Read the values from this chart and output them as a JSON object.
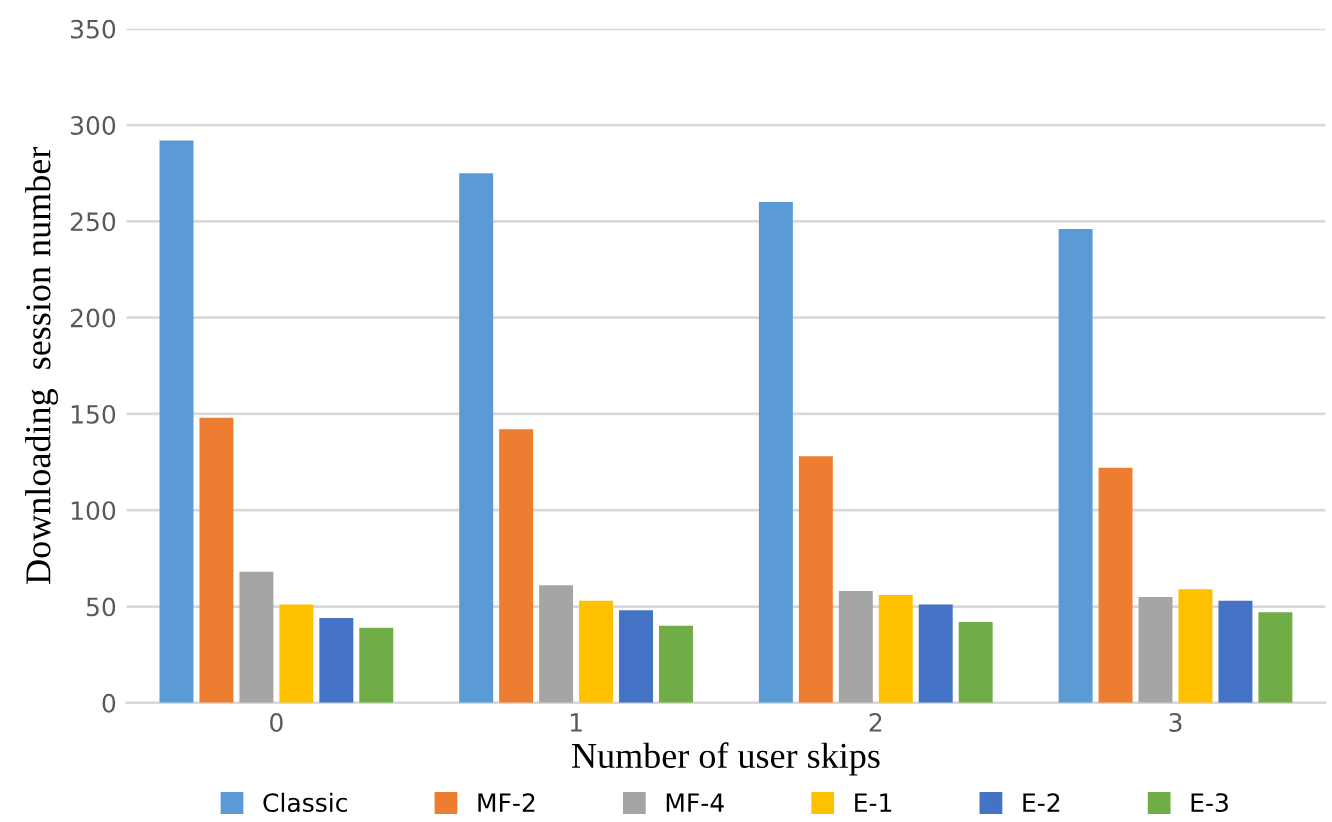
{
  "chart_data": {
    "type": "bar",
    "xlabel": "Number of user skips",
    "ylabel": "Downloading  session number",
    "categories": [
      "0",
      "1",
      "2",
      "3"
    ],
    "series": [
      {
        "name": "Classic",
        "color": "#5b9bd5",
        "values": [
          292,
          275,
          260,
          246
        ]
      },
      {
        "name": "MF-2",
        "color": "#ed7d31",
        "values": [
          148,
          142,
          128,
          122
        ]
      },
      {
        "name": "MF-4",
        "color": "#a5a5a5",
        "values": [
          68,
          61,
          58,
          55
        ]
      },
      {
        "name": "E-1",
        "color": "#ffc000",
        "values": [
          51,
          53,
          56,
          59
        ]
      },
      {
        "name": "E-2",
        "color": "#4472c4",
        "values": [
          44,
          48,
          51,
          53
        ]
      },
      {
        "name": "E-3",
        "color": "#70ad47",
        "values": [
          39,
          40,
          42,
          47
        ]
      }
    ],
    "ylim": [
      0,
      350
    ],
    "yticks": [
      0,
      50,
      100,
      150,
      200,
      250,
      300,
      350
    ],
    "grid": "y",
    "legend": "bottom"
  }
}
